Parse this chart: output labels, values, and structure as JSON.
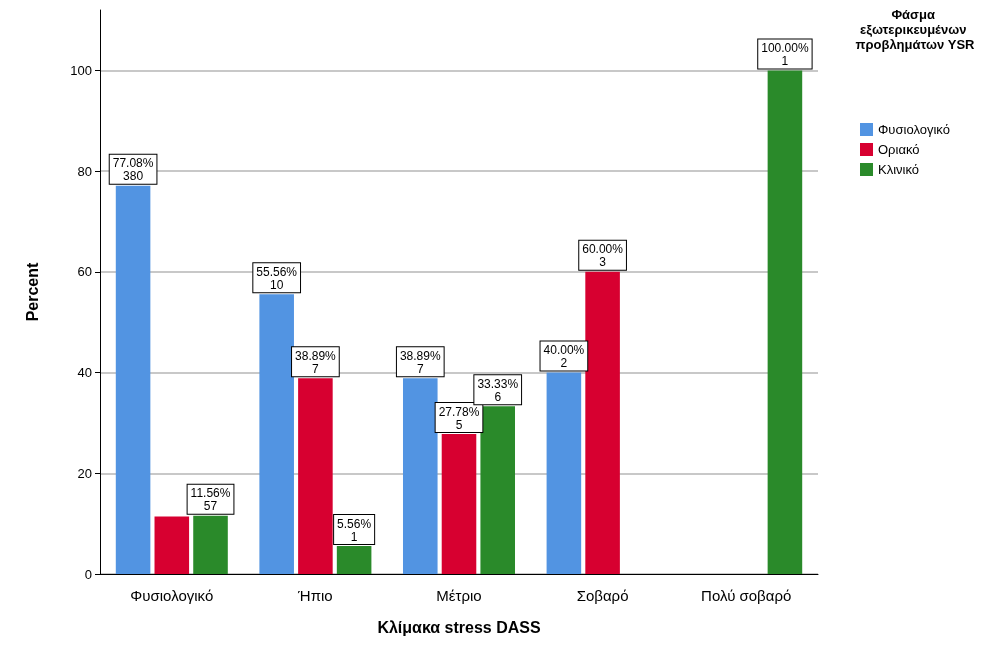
{
  "chart_data": {
    "type": "bar",
    "xlabel": "Κλίμακα stress DASS",
    "ylabel": "Percent",
    "legend_title": "Φάσμα εξωτερικευμένων προβλημάτων YSR",
    "categories": [
      "Φυσιολογικό",
      "Ήπιο",
      "Μέτριο",
      "Σοβαρό",
      "Πολύ σοβαρό"
    ],
    "series": [
      {
        "name": "Φυσιολογικό",
        "color": "#5294e2",
        "values": [
          77.08,
          55.56,
          38.89,
          40.0,
          null
        ],
        "value_labels": [
          "77.08%\n380",
          "55.56%\n10",
          "38.89%\n7",
          "40.00%\n2",
          null
        ]
      },
      {
        "name": "Οριακό",
        "color": "#d70030",
        "values": [
          11.4,
          38.89,
          27.78,
          60.0,
          null
        ],
        "value_labels": [
          null,
          "38.89%\n7",
          "27.78%\n5",
          "60.00%\n3",
          null
        ]
      },
      {
        "name": "Κλινικό",
        "color": "#2a8a2a",
        "values": [
          11.56,
          5.56,
          33.33,
          null,
          100.0
        ],
        "value_labels": [
          "11.56%\n57",
          "5.56%\n1",
          "33.33%\n6",
          null,
          "100.00%\n1"
        ]
      }
    ],
    "ylim": [
      0,
      112
    ],
    "yticks": [
      0,
      20,
      40,
      60,
      80,
      100
    ],
    "grid": "y",
    "legend": "right"
  }
}
